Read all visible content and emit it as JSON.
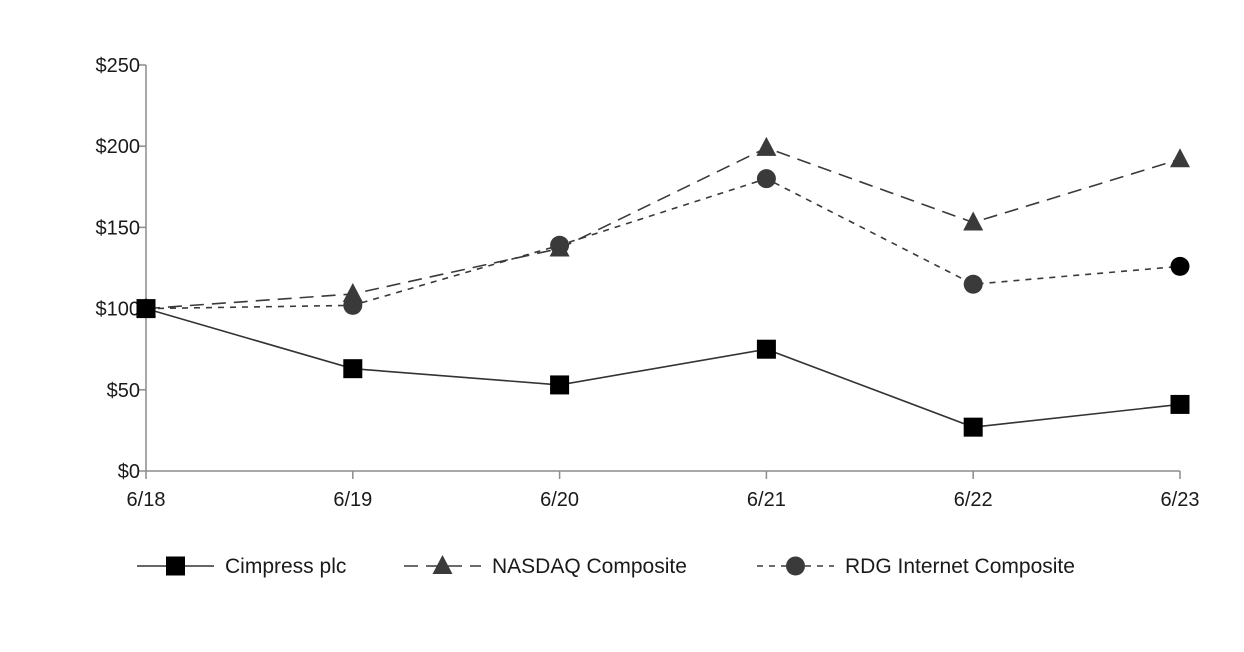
{
  "chart_data": {
    "type": "line",
    "title": "",
    "xlabel": "",
    "ylabel": "",
    "categories": [
      "6/18",
      "6/19",
      "6/20",
      "6/21",
      "6/22",
      "6/23"
    ],
    "y_ticks": [
      "$0",
      "$50",
      "$100",
      "$150",
      "$200",
      "$250"
    ],
    "ylim": [
      0,
      250
    ],
    "grid": false,
    "legend_position": "bottom",
    "series": [
      {
        "name": "Cimpress plc",
        "values": [
          100,
          63,
          53,
          75,
          27,
          41
        ],
        "marker": "square",
        "dash": "solid",
        "color": "#000000",
        "line_color": "#333333"
      },
      {
        "name": "NASDAQ Composite",
        "values": [
          100,
          109,
          137,
          199,
          153,
          192
        ],
        "marker": "triangle",
        "dash": "long-dash",
        "color": "#3a3a3a",
        "line_color": "#3a3a3a"
      },
      {
        "name": "RDG Internet Composite",
        "values": [
          100,
          102,
          139,
          180,
          115,
          126
        ],
        "marker": "circle",
        "dash": "short-dash",
        "color": "#3a3a3a",
        "line_color": "#3a3a3a"
      }
    ]
  }
}
